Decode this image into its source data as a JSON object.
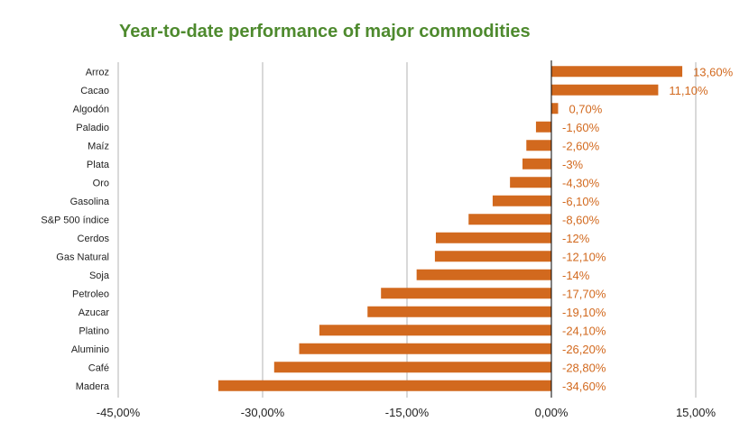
{
  "chart_data": {
    "type": "bar",
    "orientation": "horizontal",
    "title": "Year-to-date performance of major commodities",
    "xlabel": "",
    "ylabel": "",
    "xlim": [
      -45,
      15
    ],
    "x_ticks": [
      -45,
      -30,
      -15,
      0,
      15
    ],
    "x_tick_labels": [
      "-45,00%",
      "-30,00%",
      "-15,00%",
      "0,00%",
      "15,00%"
    ],
    "grid": "vertical",
    "colors": {
      "bar": "#d2691e",
      "label": "#d2691e",
      "title": "#4e8a2e",
      "grid": "#b3b3b3"
    },
    "categories": [
      "Arroz",
      "Cacao",
      "Algodón",
      "Paladio",
      "Maíz",
      "Plata",
      "Oro",
      "Gasolina",
      "S&P 500 índice",
      "Cerdos",
      "Gas Natural",
      "Soja",
      "Petroleo",
      "Azucar",
      "Platino",
      "Aluminio",
      "Café",
      "Madera"
    ],
    "values": [
      13.6,
      11.1,
      0.7,
      -1.6,
      -2.6,
      -3,
      -4.3,
      -6.1,
      -8.6,
      -12,
      -12.1,
      -14,
      -17.7,
      -19.1,
      -24.1,
      -26.2,
      -28.8,
      -34.6
    ],
    "value_labels": [
      "13,60%",
      "11,10%",
      "0,70%",
      "-1,60%",
      "-2,60%",
      "-3%",
      "-4,30%",
      "-6,10%",
      "-8,60%",
      "-12%",
      "-12,10%",
      "-14%",
      "-17,70%",
      "-19,10%",
      "-24,10%",
      "-26,20%",
      "-28,80%",
      "-34,60%"
    ]
  }
}
